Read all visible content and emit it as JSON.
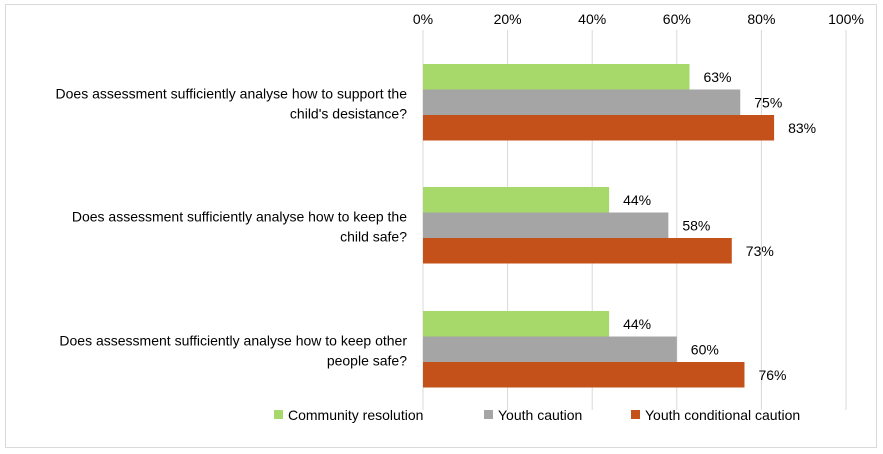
{
  "chart_data": {
    "type": "bar",
    "orientation": "horizontal",
    "categories": [
      [
        "Does assessment sufficiently analyse how to support the",
        "child's desistance?"
      ],
      [
        "Does assessment sufficiently analyse how to keep the",
        "child safe?"
      ],
      [
        "Does assessment sufficiently analyse how to keep other",
        "people safe?"
      ]
    ],
    "series": [
      {
        "name": "Community resolution",
        "color": "#a6d96a",
        "values": [
          63,
          44,
          44
        ]
      },
      {
        "name": "Youth caution",
        "color": "#a5a5a5",
        "values": [
          75,
          58,
          60
        ]
      },
      {
        "name": "Youth conditional caution",
        "color": "#c5511a",
        "values": [
          83,
          73,
          76
        ]
      }
    ],
    "xlim": [
      0,
      100
    ],
    "x_ticks": [
      "0%",
      "20%",
      "40%",
      "60%",
      "80%",
      "100%"
    ],
    "x_axis_position": "top",
    "grid": true,
    "data_labels": true,
    "value_suffix": "%",
    "legend": "bottom"
  }
}
